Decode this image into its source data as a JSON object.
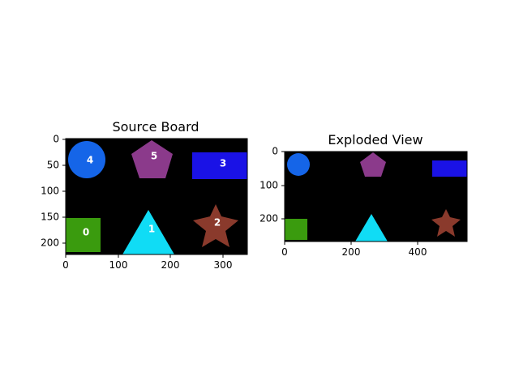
{
  "panels": {
    "source": {
      "title": "Source Board",
      "x_ticks": [
        "0",
        "100",
        "200",
        "300"
      ],
      "y_ticks": [
        "0",
        "50",
        "100",
        "150",
        "200"
      ],
      "background": "#000000",
      "shapes": [
        {
          "id": "4",
          "kind": "circle",
          "color": "#1565e8",
          "label": "4"
        },
        {
          "id": "5",
          "kind": "pentagon",
          "color": "#8b3a8b",
          "label": "5"
        },
        {
          "id": "3",
          "kind": "rectangle",
          "color": "#1a12e6",
          "label": "3"
        },
        {
          "id": "0",
          "kind": "square",
          "color": "#3a9b0e",
          "label": "0"
        },
        {
          "id": "1",
          "kind": "triangle",
          "color": "#10dcf5",
          "label": "1"
        },
        {
          "id": "2",
          "kind": "star",
          "color": "#8a3a2c",
          "label": "2"
        }
      ]
    },
    "exploded": {
      "title": "Exploded View",
      "x_ticks": [
        "0",
        "200",
        "400"
      ],
      "y_ticks": [
        "0",
        "100",
        "200"
      ],
      "background": "#000000",
      "shapes": [
        {
          "id": "4",
          "kind": "circle",
          "color": "#1565e8"
        },
        {
          "id": "5",
          "kind": "pentagon",
          "color": "#8b3a8b"
        },
        {
          "id": "3",
          "kind": "rectangle",
          "color": "#1a12e6"
        },
        {
          "id": "0",
          "kind": "square",
          "color": "#3a9b0e"
        },
        {
          "id": "1",
          "kind": "triangle",
          "color": "#10dcf5"
        },
        {
          "id": "2",
          "kind": "star",
          "color": "#8a3a2c"
        }
      ]
    }
  }
}
